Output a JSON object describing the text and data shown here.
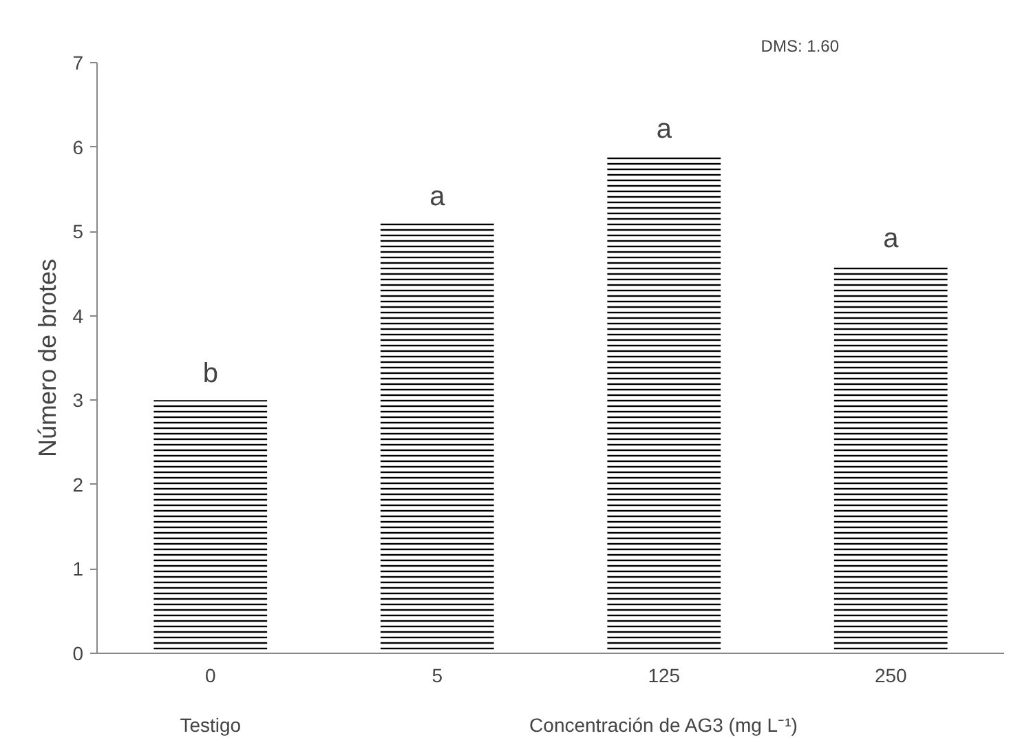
{
  "chart_data": {
    "type": "bar",
    "ylabel": "Número de brotes",
    "categories": [
      "0",
      "5",
      "125",
      "250"
    ],
    "series": [
      {
        "color": "#000000",
        "values": [
          3.0,
          5.1,
          5.9,
          4.6
        ]
      }
    ],
    "ylim": [
      0,
      7
    ],
    "yticks": [
      0,
      1,
      2,
      3,
      4,
      5,
      6,
      7
    ],
    "grid": false,
    "annotations": [
      {
        "text": "b",
        "x": "0",
        "y": 3.0
      },
      {
        "text": "a",
        "x": "5",
        "y": 5.1
      },
      {
        "text": "a",
        "x": "125",
        "y": 5.9
      },
      {
        "text": "a",
        "x": "250",
        "y": 4.6
      },
      "DMS: 1.60",
      "Testigo",
      "Concentración de AG3 (mg L⁻¹)"
    ]
  }
}
